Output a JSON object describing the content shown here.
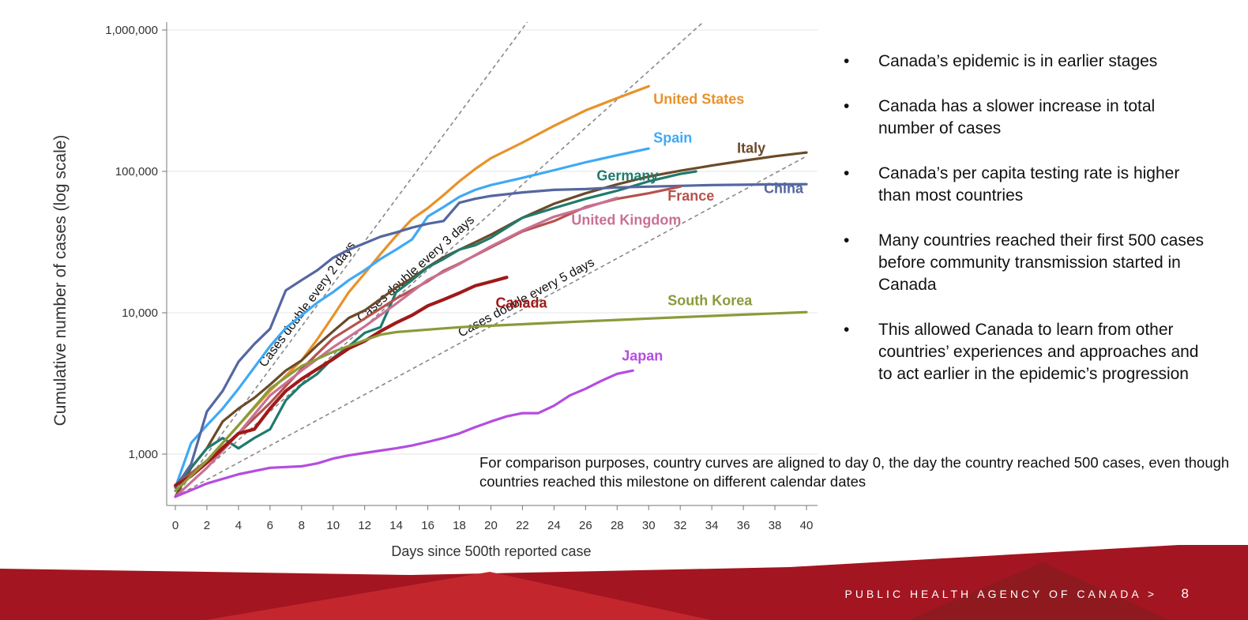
{
  "chart_data": {
    "type": "line",
    "xlabel": "Days since 500th reported case",
    "ylabel": "Cumulative number of cases (log scale)",
    "xlim": [
      0,
      40
    ],
    "ylim": [
      500,
      1000000
    ],
    "y_scale": "log",
    "x_ticks": [
      0,
      2,
      4,
      6,
      8,
      10,
      12,
      14,
      16,
      18,
      20,
      22,
      24,
      26,
      28,
      30,
      32,
      34,
      36,
      38,
      40
    ],
    "y_ticks": [
      1000,
      10000,
      100000,
      1000000
    ],
    "y_tick_labels": [
      "1,000",
      "10,000",
      "100,000",
      "1,000,000"
    ],
    "grid": "horizontal",
    "reference_lines": [
      {
        "label": "Cases double every 2 days",
        "doubling_days": 2
      },
      {
        "label": "Cases double every 3 days",
        "doubling_days": 3
      },
      {
        "label": "Cases double every 5 days",
        "doubling_days": 5
      }
    ],
    "series": [
      {
        "name": "United States",
        "color": "#e8922a",
        "points": [
          [
            0,
            550
          ],
          [
            2,
            900
          ],
          [
            4,
            1600
          ],
          [
            6,
            2800
          ],
          [
            8,
            4600
          ],
          [
            9,
            6500
          ],
          [
            10,
            9500
          ],
          [
            11,
            14000
          ],
          [
            12,
            19000
          ],
          [
            13,
            26000
          ],
          [
            14,
            35000
          ],
          [
            15,
            46000
          ],
          [
            16,
            55000
          ],
          [
            17,
            68000
          ],
          [
            18,
            85000
          ],
          [
            19,
            104000
          ],
          [
            20,
            124000
          ],
          [
            22,
            160000
          ],
          [
            24,
            210000
          ],
          [
            26,
            270000
          ],
          [
            28,
            330000
          ],
          [
            30,
            400000
          ]
        ]
      },
      {
        "name": "Spain",
        "color": "#3fa9f5",
        "points": [
          [
            0,
            580
          ],
          [
            1,
            1200
          ],
          [
            2,
            1600
          ],
          [
            3,
            2100
          ],
          [
            4,
            2900
          ],
          [
            5,
            4100
          ],
          [
            6,
            5800
          ],
          [
            7,
            7800
          ],
          [
            8,
            9600
          ],
          [
            9,
            11800
          ],
          [
            10,
            14000
          ],
          [
            11,
            17000
          ],
          [
            12,
            20000
          ],
          [
            13,
            24000
          ],
          [
            14,
            28000
          ],
          [
            15,
            33000
          ],
          [
            16,
            48000
          ],
          [
            17,
            56000
          ],
          [
            18,
            66000
          ],
          [
            19,
            74000
          ],
          [
            20,
            80000
          ],
          [
            22,
            90000
          ],
          [
            24,
            102000
          ],
          [
            26,
            116000
          ],
          [
            28,
            130000
          ],
          [
            30,
            145000
          ]
        ]
      },
      {
        "name": "Italy",
        "color": "#6b4a2a",
        "points": [
          [
            0,
            500
          ],
          [
            1,
            800
          ],
          [
            2,
            1100
          ],
          [
            3,
            1700
          ],
          [
            4,
            2100
          ],
          [
            5,
            2500
          ],
          [
            6,
            3100
          ],
          [
            7,
            3900
          ],
          [
            8,
            4600
          ],
          [
            9,
            5900
          ],
          [
            10,
            7400
          ],
          [
            11,
            9200
          ],
          [
            12,
            10400
          ],
          [
            13,
            12500
          ],
          [
            14,
            15100
          ],
          [
            15,
            17600
          ],
          [
            16,
            21100
          ],
          [
            17,
            24700
          ],
          [
            18,
            27900
          ],
          [
            19,
            31500
          ],
          [
            20,
            35700
          ],
          [
            22,
            47000
          ],
          [
            24,
            59000
          ],
          [
            26,
            70000
          ],
          [
            28,
            81000
          ],
          [
            30,
            92000
          ],
          [
            32,
            101000
          ],
          [
            34,
            110000
          ],
          [
            36,
            119000
          ],
          [
            38,
            128000
          ],
          [
            40,
            136000
          ]
        ]
      },
      {
        "name": "Germany",
        "color": "#1f7a6d",
        "points": [
          [
            0,
            600
          ],
          [
            1,
            800
          ],
          [
            2,
            1100
          ],
          [
            3,
            1300
          ],
          [
            4,
            1100
          ],
          [
            5,
            1300
          ],
          [
            6,
            1500
          ],
          [
            7,
            2400
          ],
          [
            8,
            3100
          ],
          [
            9,
            3700
          ],
          [
            10,
            4800
          ],
          [
            11,
            5800
          ],
          [
            12,
            7200
          ],
          [
            13,
            7900
          ],
          [
            14,
            14000
          ],
          [
            15,
            17000
          ],
          [
            16,
            21000
          ],
          [
            17,
            24000
          ],
          [
            18,
            28000
          ],
          [
            19,
            30000
          ],
          [
            20,
            34000
          ],
          [
            22,
            47000
          ],
          [
            24,
            55000
          ],
          [
            26,
            64000
          ],
          [
            28,
            73000
          ],
          [
            30,
            85000
          ],
          [
            32,
            96000
          ],
          [
            33,
            100000
          ]
        ]
      },
      {
        "name": "China",
        "color": "#5567a0",
        "points": [
          [
            0,
            580
          ],
          [
            1,
            850
          ],
          [
            2,
            2000
          ],
          [
            3,
            2800
          ],
          [
            4,
            4500
          ],
          [
            5,
            6000
          ],
          [
            6,
            7700
          ],
          [
            7,
            14400
          ],
          [
            8,
            17000
          ],
          [
            9,
            20000
          ],
          [
            10,
            24500
          ],
          [
            11,
            28000
          ],
          [
            12,
            31000
          ],
          [
            13,
            34500
          ],
          [
            14,
            37000
          ],
          [
            15,
            40000
          ],
          [
            16,
            42600
          ],
          [
            17,
            44600
          ],
          [
            18,
            60000
          ],
          [
            19,
            64000
          ],
          [
            20,
            67000
          ],
          [
            22,
            71000
          ],
          [
            24,
            74000
          ],
          [
            26,
            75000
          ],
          [
            28,
            77000
          ],
          [
            30,
            78000
          ],
          [
            32,
            79000
          ],
          [
            34,
            80000
          ],
          [
            36,
            80500
          ],
          [
            38,
            81000
          ],
          [
            40,
            81200
          ]
        ]
      },
      {
        "name": "France",
        "color": "#b5524d",
        "points": [
          [
            0,
            600
          ],
          [
            2,
            900
          ],
          [
            4,
            1400
          ],
          [
            6,
            2300
          ],
          [
            8,
            4000
          ],
          [
            10,
            6600
          ],
          [
            12,
            9100
          ],
          [
            14,
            12600
          ],
          [
            16,
            16700
          ],
          [
            17,
            19800
          ],
          [
            18,
            22300
          ],
          [
            20,
            29000
          ],
          [
            22,
            37600
          ],
          [
            24,
            44500
          ],
          [
            26,
            56000
          ],
          [
            28,
            64000
          ],
          [
            30,
            70000
          ],
          [
            32,
            78000
          ]
        ]
      },
      {
        "name": "United Kingdom",
        "color": "#c97093",
        "points": [
          [
            0,
            500
          ],
          [
            2,
            800
          ],
          [
            4,
            1400
          ],
          [
            6,
            2600
          ],
          [
            8,
            3900
          ],
          [
            10,
            5700
          ],
          [
            12,
            8000
          ],
          [
            14,
            11600
          ],
          [
            16,
            17100
          ],
          [
            18,
            22100
          ],
          [
            20,
            29500
          ],
          [
            22,
            38200
          ],
          [
            24,
            47800
          ],
          [
            26,
            55200
          ],
          [
            28,
            65000
          ]
        ]
      },
      {
        "name": "Canada",
        "color": "#a01919",
        "points": [
          [
            0,
            600
          ],
          [
            1,
            700
          ],
          [
            2,
            870
          ],
          [
            3,
            1100
          ],
          [
            4,
            1400
          ],
          [
            5,
            1500
          ],
          [
            6,
            2100
          ],
          [
            7,
            2800
          ],
          [
            8,
            3400
          ],
          [
            9,
            4000
          ],
          [
            10,
            4700
          ],
          [
            11,
            5600
          ],
          [
            12,
            6300
          ],
          [
            13,
            7400
          ],
          [
            14,
            8500
          ],
          [
            15,
            9600
          ],
          [
            16,
            11200
          ],
          [
            17,
            12400
          ],
          [
            18,
            13800
          ],
          [
            19,
            15500
          ],
          [
            20,
            16600
          ],
          [
            21,
            17800
          ]
        ]
      },
      {
        "name": "South Korea",
        "color": "#8a9b3a",
        "points": [
          [
            0,
            550
          ],
          [
            2,
            900
          ],
          [
            4,
            1600
          ],
          [
            6,
            2900
          ],
          [
            8,
            4200
          ],
          [
            10,
            5300
          ],
          [
            12,
            6400
          ],
          [
            13,
            7000
          ],
          [
            14,
            7300
          ],
          [
            16,
            7600
          ],
          [
            18,
            7900
          ],
          [
            20,
            8100
          ],
          [
            22,
            8300
          ],
          [
            24,
            8500
          ],
          [
            26,
            8700
          ],
          [
            28,
            8900
          ],
          [
            30,
            9100
          ],
          [
            32,
            9300
          ],
          [
            34,
            9500
          ],
          [
            36,
            9700
          ],
          [
            38,
            9900
          ],
          [
            40,
            10100
          ]
        ]
      },
      {
        "name": "Japan",
        "color": "#b44de0",
        "points": [
          [
            0,
            500
          ],
          [
            2,
            620
          ],
          [
            4,
            720
          ],
          [
            6,
            800
          ],
          [
            8,
            820
          ],
          [
            9,
            860
          ],
          [
            10,
            930
          ],
          [
            11,
            980
          ],
          [
            12,
            1020
          ],
          [
            13,
            1060
          ],
          [
            14,
            1100
          ],
          [
            15,
            1150
          ],
          [
            16,
            1220
          ],
          [
            17,
            1300
          ],
          [
            18,
            1400
          ],
          [
            19,
            1550
          ],
          [
            20,
            1700
          ],
          [
            21,
            1850
          ],
          [
            22,
            1950
          ],
          [
            23,
            1950
          ],
          [
            24,
            2200
          ],
          [
            25,
            2600
          ],
          [
            26,
            2900
          ],
          [
            27,
            3300
          ],
          [
            28,
            3700
          ],
          [
            29,
            3900
          ]
        ]
      }
    ]
  },
  "bullets": [
    "Canada’s epidemic is in earlier stages",
    "Canada has a slower increase in total number of cases",
    "Canada’s per capita testing rate is higher than most countries",
    "Many countries reached their first 500 cases before community transmission started in Canada",
    "This allowed Canada to learn from other countries’ experiences and approaches and to act earlier in the epidemic’s progression"
  ],
  "note": "For comparison purposes, country curves are aligned to day 0, the day the country reached 500 cases, even though countries reached this milestone on different calendar dates",
  "footer": {
    "agency": "PUBLIC HEALTH AGENCY OF CANADA >",
    "page": "8",
    "colors": [
      "#a31520",
      "#c4262e",
      "#8e1a20"
    ]
  }
}
